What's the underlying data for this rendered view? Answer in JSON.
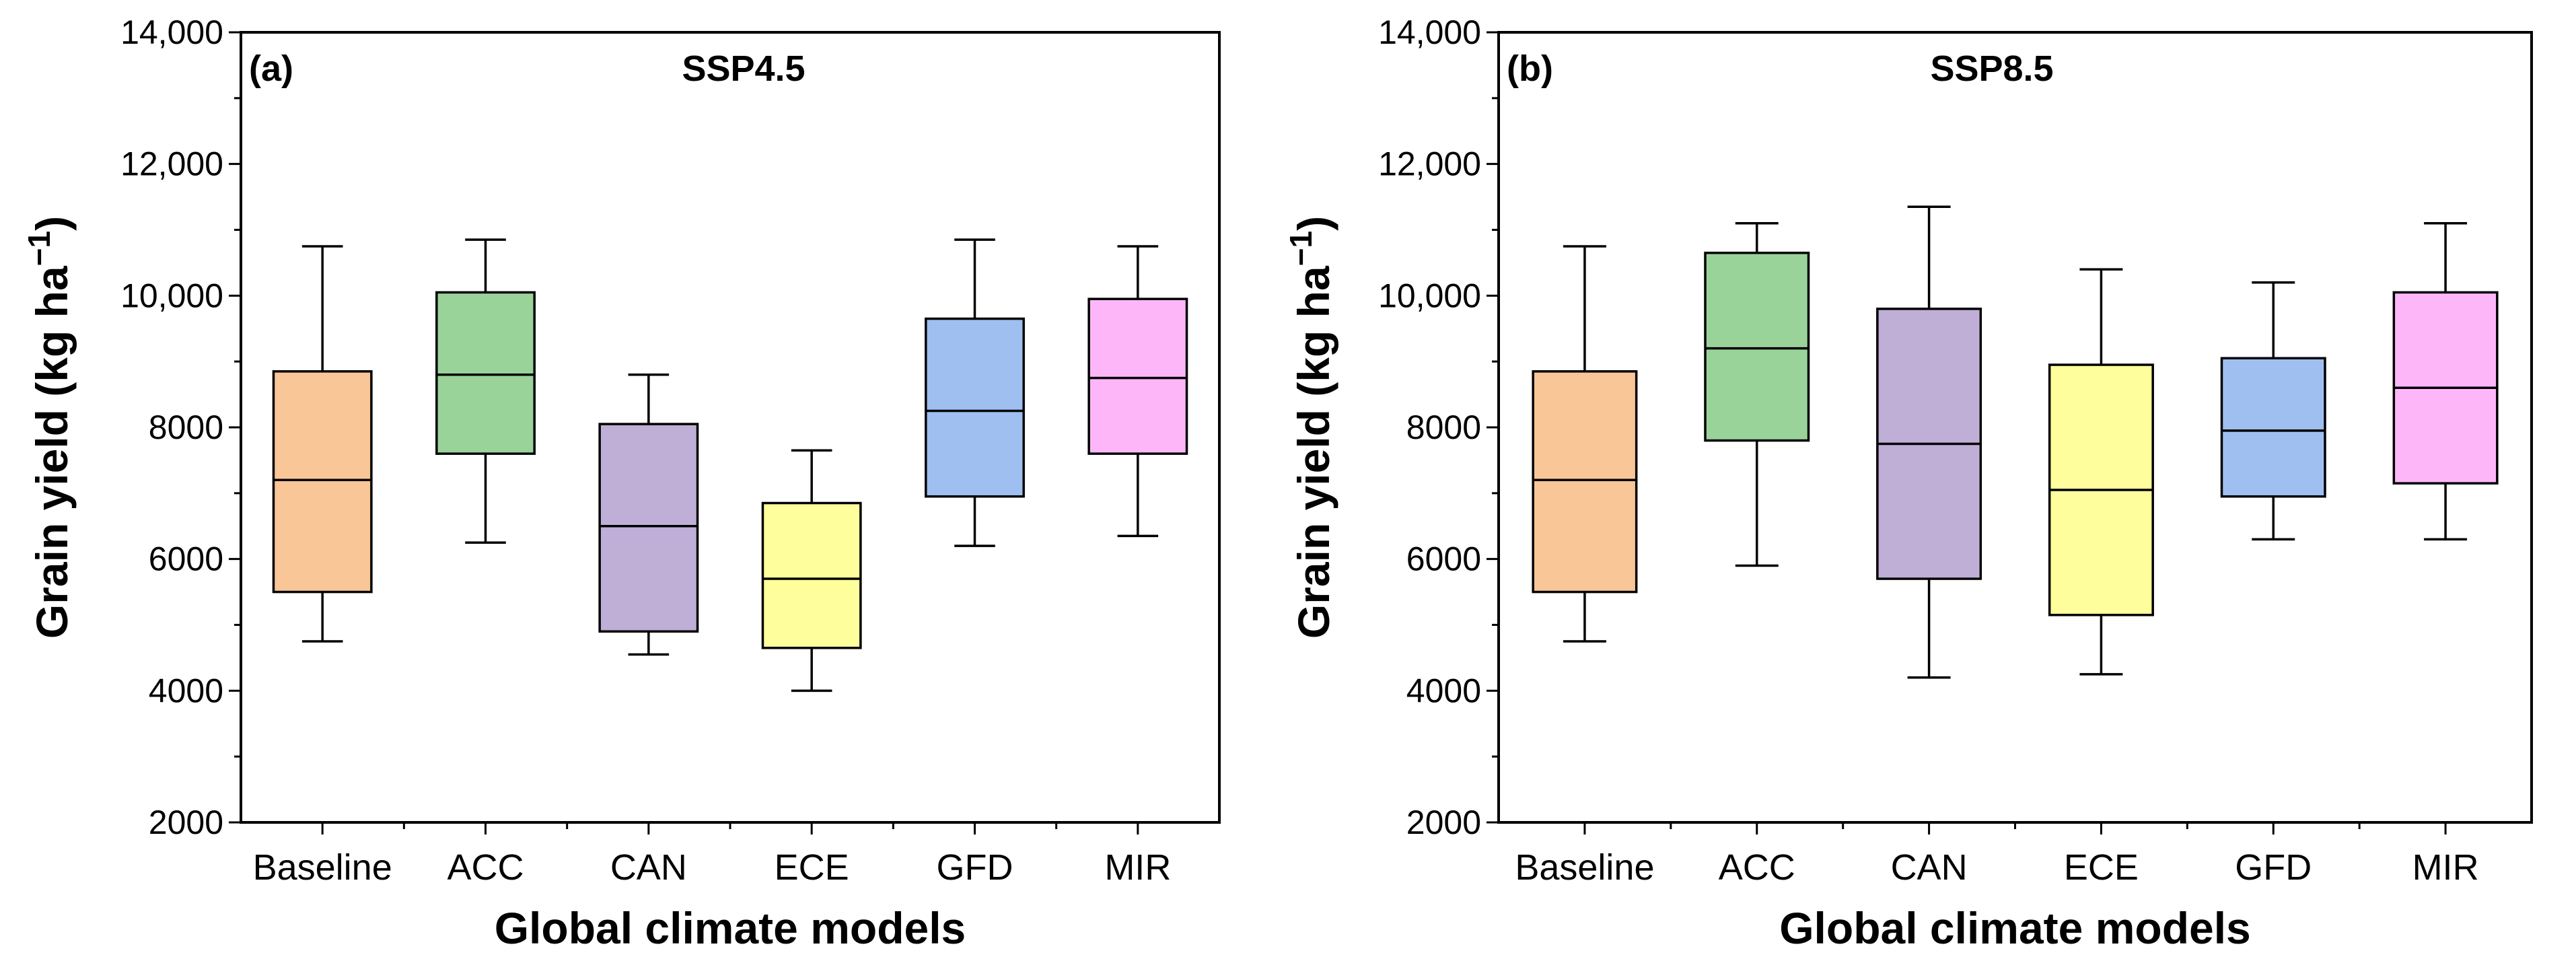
{
  "chart_data": [
    {
      "type": "box",
      "panel_label": "(a)",
      "title": "SSP4.5",
      "xlabel": "Global climate models",
      "ylabel": "Grain yield (kg ha",
      "ylabel_sup": "−1",
      "ylabel_suffix": ")",
      "ylim": [
        2000,
        14000
      ],
      "yticks": [
        {
          "value": 2000,
          "label": "2000"
        },
        {
          "value": 4000,
          "label": "4000"
        },
        {
          "value": 6000,
          "label": "6000"
        },
        {
          "value": 8000,
          "label": "8000"
        },
        {
          "value": 10000,
          "label": "10,000"
        },
        {
          "value": 12000,
          "label": "12,000"
        },
        {
          "value": 14000,
          "label": "14,000"
        }
      ],
      "grid": false,
      "categories": [
        "Baseline",
        "ACC",
        "CAN",
        "ECE",
        "GFD",
        "MIR"
      ],
      "boxes": [
        {
          "category": "Baseline",
          "min": 4750,
          "q1": 5500,
          "median": 7200,
          "q3": 8850,
          "max": 10750,
          "color": "#f9c697"
        },
        {
          "category": "ACC",
          "min": 6250,
          "q1": 7600,
          "median": 8800,
          "q3": 10050,
          "max": 10850,
          "color": "#9ad39a"
        },
        {
          "category": "CAN",
          "min": 4550,
          "q1": 4900,
          "median": 6500,
          "q3": 8050,
          "max": 8800,
          "color": "#bfaed6"
        },
        {
          "category": "ECE",
          "min": 4000,
          "q1": 4650,
          "median": 5700,
          "q3": 6850,
          "max": 7650,
          "color": "#feff9c"
        },
        {
          "category": "GFD",
          "min": 6200,
          "q1": 6950,
          "median": 8250,
          "q3": 9650,
          "max": 10850,
          "color": "#9fbff0"
        },
        {
          "category": "MIR",
          "min": 6350,
          "q1": 7600,
          "median": 8750,
          "q3": 9950,
          "max": 10750,
          "color": "#fdb7f9"
        }
      ]
    },
    {
      "type": "box",
      "panel_label": "(b)",
      "title": "SSP8.5",
      "xlabel": "Global climate models",
      "ylabel": "Grain yield (kg ha",
      "ylabel_sup": "−1",
      "ylabel_suffix": ")",
      "ylim": [
        2000,
        14000
      ],
      "yticks": [
        {
          "value": 2000,
          "label": "2000"
        },
        {
          "value": 4000,
          "label": "4000"
        },
        {
          "value": 6000,
          "label": "6000"
        },
        {
          "value": 8000,
          "label": "8000"
        },
        {
          "value": 10000,
          "label": "10,000"
        },
        {
          "value": 12000,
          "label": "12,000"
        },
        {
          "value": 14000,
          "label": "14,000"
        }
      ],
      "grid": false,
      "categories": [
        "Baseline",
        "ACC",
        "CAN",
        "ECE",
        "GFD",
        "MIR"
      ],
      "boxes": [
        {
          "category": "Baseline",
          "min": 4750,
          "q1": 5500,
          "median": 7200,
          "q3": 8850,
          "max": 10750,
          "color": "#f9c697"
        },
        {
          "category": "ACC",
          "min": 5900,
          "q1": 7800,
          "median": 9200,
          "q3": 10650,
          "max": 11100,
          "color": "#9ad39a"
        },
        {
          "category": "CAN",
          "min": 4200,
          "q1": 5700,
          "median": 7750,
          "q3": 9800,
          "max": 11350,
          "color": "#bfaed6"
        },
        {
          "category": "ECE",
          "min": 4250,
          "q1": 5150,
          "median": 7050,
          "q3": 8950,
          "max": 10400,
          "color": "#feff9c"
        },
        {
          "category": "GFD",
          "min": 6300,
          "q1": 6950,
          "median": 7950,
          "q3": 9050,
          "max": 10200,
          "color": "#9fbff0"
        },
        {
          "category": "MIR",
          "min": 6300,
          "q1": 7150,
          "median": 8600,
          "q3": 10050,
          "max": 11100,
          "color": "#fdb7f9"
        }
      ]
    }
  ]
}
